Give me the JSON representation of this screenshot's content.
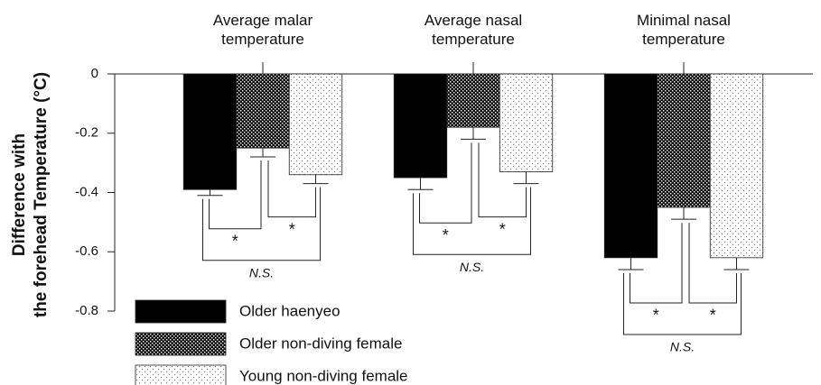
{
  "chart_data": {
    "type": "bar",
    "y_label": [
      "Difference with",
      "the forehead Temperature (°C)"
    ],
    "categories": [
      "Average malar temperature",
      "Average nasal temperature",
      "Minimal nasal temperature"
    ],
    "series": [
      {
        "name": "Older haenyeo",
        "color": "#000000",
        "pattern": "solid",
        "values": [
          -0.39,
          -0.35,
          -0.62
        ],
        "errors": [
          0.02,
          0.04,
          0.04
        ]
      },
      {
        "name": "Older non-diving female",
        "color": "#000000",
        "pattern": "dense-dots",
        "values": [
          -0.25,
          -0.18,
          -0.45
        ],
        "errors": [
          0.03,
          0.04,
          0.04
        ]
      },
      {
        "name": "Young non-diving female",
        "color": "#888888",
        "pattern": "sparse-dots",
        "values": [
          -0.34,
          -0.33,
          -0.62
        ],
        "errors": [
          0.03,
          0.04,
          0.04
        ]
      }
    ],
    "comparisons": [
      {
        "from": 0,
        "to": 1,
        "label": "*"
      },
      {
        "from": 1,
        "to": 2,
        "label": "*"
      },
      {
        "from": 0,
        "to": 2,
        "label": "N.S."
      }
    ],
    "ylim": [
      -0.8,
      0
    ],
    "yticks": [
      0,
      -0.2,
      -0.4,
      -0.6,
      -0.8
    ],
    "legend": "bottom-left"
  }
}
